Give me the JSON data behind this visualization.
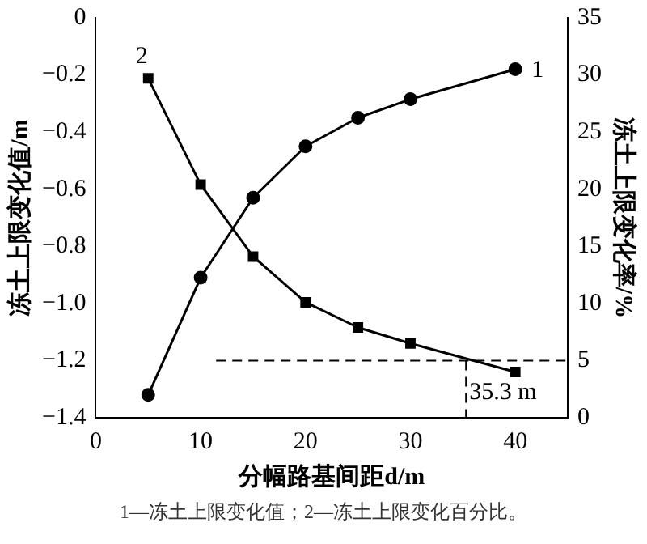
{
  "chart_data": {
    "type": "line",
    "xlabel": "分幅路基间距d/m",
    "ylabel": "冻土上限变化值/m",
    "y2label": "冻土上限变化率/%",
    "x": [
      5,
      10,
      15,
      20,
      25,
      30,
      40
    ],
    "series": [
      {
        "name": "1",
        "color": "#000000",
        "marker": "circle",
        "values": [
          -1.32,
          -0.91,
          -0.63,
          -0.45,
          -0.35,
          -0.285,
          -0.18
        ]
      },
      {
        "name": "2",
        "color": "#000000",
        "marker": "square",
        "axis": "y2",
        "values": [
          29.7,
          20.4,
          14.1,
          10.1,
          7.9,
          6.5,
          4.0
        ]
      }
    ],
    "xlim": [
      0,
      45
    ],
    "xticks": [
      0,
      10,
      20,
      30,
      40
    ],
    "ylim": [
      -1.4,
      0
    ],
    "yticks": [
      {
        "value": -1.4,
        "label": "−1.4"
      },
      {
        "value": -1.2,
        "label": "−1.2"
      },
      {
        "value": -1,
        "label": "−1.0"
      },
      {
        "value": -0.8,
        "label": "−0.8"
      },
      {
        "value": -0.6,
        "label": "−0.6"
      },
      {
        "value": -0.4,
        "label": "−0.4"
      },
      {
        "value": -0.2,
        "label": "−0.2"
      },
      0
    ],
    "y2lim": [
      0,
      35
    ],
    "y2ticks": [
      0,
      5,
      10,
      15,
      20,
      25,
      30,
      35
    ],
    "ref_lines": [
      {
        "axis": "y2",
        "value": 5,
        "line_style": "dashed"
      },
      {
        "axis": "x",
        "value": 35.3,
        "label": "35.3 m",
        "line_style": "dashed"
      }
    ],
    "grid": false,
    "legend": false,
    "annotations": [
      "1—冻土上限变化值；2—冻土上限变化百分比。"
    ]
  }
}
